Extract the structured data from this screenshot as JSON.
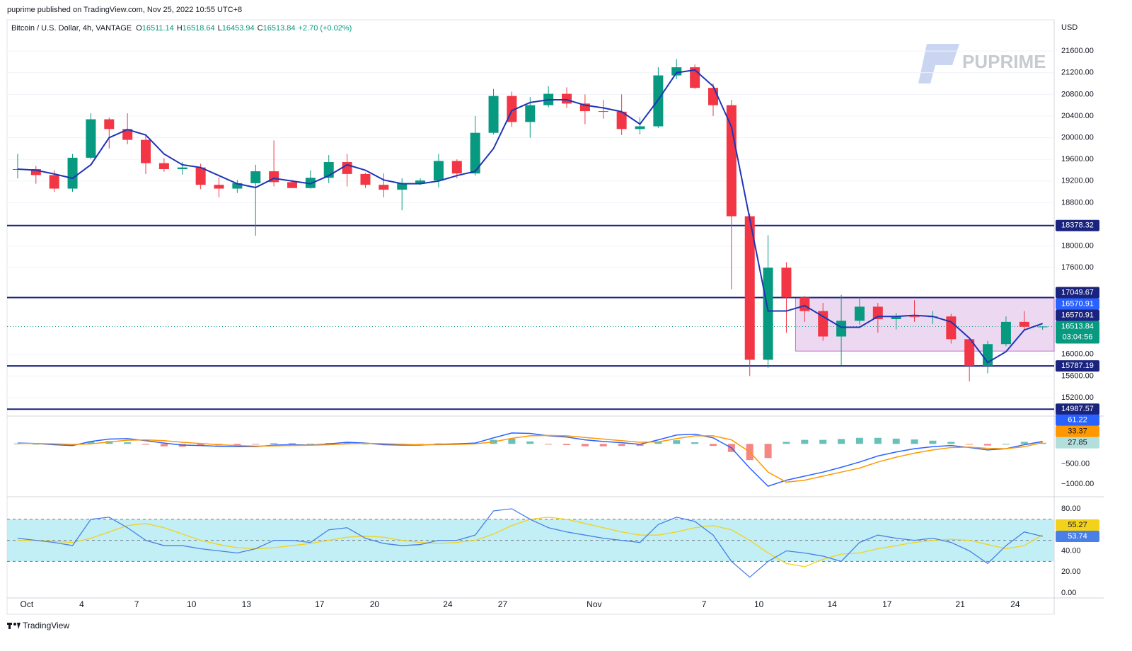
{
  "header": {
    "published": "puprime published on TradingView.com, Nov 25, 2022 10:55 UTC+8",
    "footer": "TradingView",
    "watermark": "PUPRIME"
  },
  "chart_data": [
    {
      "type": "candlestick",
      "title": "Bitcoin / U.S. Dollar, 4h, VANTAGE",
      "ohlc": [
        {
          "label": "O",
          "value": 16511.14
        },
        {
          "label": "H",
          "value": 16518.64
        },
        {
          "label": "L",
          "value": 16453.94
        },
        {
          "label": "C",
          "value": 16513.84
        }
      ],
      "change": "+2.70 (+0.02%)",
      "axis_label": "USD",
      "categories": [
        null,
        "Oct",
        null,
        null,
        "4",
        null,
        null,
        "7",
        null,
        null,
        "10",
        null,
        null,
        "13",
        null,
        null,
        null,
        "17",
        null,
        null,
        "20",
        null,
        null,
        null,
        "24",
        null,
        null,
        "27",
        null,
        null,
        null,
        null,
        "Nov",
        null,
        null,
        null,
        null,
        null,
        "7",
        null,
        null,
        "10",
        null,
        null,
        null,
        "14",
        null,
        null,
        "17",
        null,
        null,
        null,
        "21",
        null,
        null,
        "24",
        null
      ],
      "open": [
        19420,
        19420,
        19310,
        19060,
        19630,
        20340,
        20160,
        19960,
        19530,
        19420,
        19450,
        19130,
        19060,
        19160,
        19380,
        19180,
        19070,
        19260,
        19550,
        19330,
        19130,
        19040,
        19160,
        19210,
        19570,
        19340,
        20090,
        20770,
        20290,
        20600,
        20810,
        20630,
        20490,
        20480,
        20160,
        20210,
        21150,
        21300,
        20920,
        20600,
        18550,
        15900,
        17600,
        17050,
        16800,
        16330,
        16620,
        16880,
        16650,
        16700,
        16690,
        16700,
        16280,
        15790,
        16190,
        16600,
        16511.14
      ],
      "high": [
        19700,
        19480,
        19400,
        19700,
        20450,
        20370,
        20450,
        20050,
        19620,
        19550,
        19520,
        19270,
        19220,
        19500,
        19950,
        19220,
        19400,
        19680,
        19700,
        19350,
        19340,
        19250,
        19250,
        19700,
        19600,
        20400,
        20900,
        20850,
        20750,
        20950,
        20930,
        20800,
        20700,
        20800,
        20380,
        21300,
        21450,
        21350,
        21000,
        20700,
        18600,
        18200,
        17700,
        17080,
        16950,
        17100,
        17050,
        16950,
        16760,
        17000,
        16800,
        16750,
        16300,
        16250,
        16700,
        16800,
        16518.64
      ],
      "low": [
        19250,
        19150,
        19000,
        19000,
        19600,
        19800,
        19880,
        19330,
        19370,
        19320,
        19050,
        18900,
        18980,
        18190,
        19100,
        19080,
        19060,
        19160,
        19100,
        19070,
        18900,
        18660,
        19130,
        19080,
        19250,
        19300,
        20060,
        20200,
        20000,
        20560,
        20550,
        20250,
        20350,
        20050,
        20060,
        20180,
        21080,
        20900,
        20400,
        17200,
        15600,
        15750,
        16400,
        16600,
        16250,
        15800,
        16550,
        16400,
        16460,
        16600,
        16560,
        16200,
        15500,
        15650,
        16150,
        16450,
        16453.94
      ],
      "close": [
        19420,
        19310,
        19060,
        19630,
        20340,
        20160,
        19960,
        19530,
        19420,
        19450,
        19130,
        19060,
        19160,
        19380,
        19180,
        19070,
        19260,
        19550,
        19330,
        19130,
        19040,
        19160,
        19210,
        19570,
        19340,
        20090,
        20770,
        20290,
        20600,
        20810,
        20630,
        20490,
        20480,
        20160,
        20210,
        21150,
        21300,
        20920,
        20600,
        18550,
        15900,
        17600,
        17050,
        16800,
        16330,
        16620,
        16880,
        16650,
        16700,
        16690,
        16700,
        16280,
        15790,
        16190,
        16600,
        16510,
        16513.84
      ],
      "colors": {
        "up": "#089981",
        "down": "#f23645"
      },
      "ma": {
        "color": "#1e35b5",
        "values": [
          19420,
          19400,
          19330,
          19250,
          19500,
          20000,
          20150,
          20050,
          19700,
          19500,
          19450,
          19300,
          19150,
          19080,
          19250,
          19200,
          19150,
          19300,
          19500,
          19400,
          19220,
          19150,
          19150,
          19200,
          19300,
          19380,
          19800,
          20500,
          20650,
          20700,
          20700,
          20600,
          20550,
          20480,
          20250,
          20700,
          21200,
          21250,
          20950,
          20200,
          18500,
          16800,
          16800,
          16900,
          16700,
          16500,
          16500,
          16700,
          16700,
          16720,
          16700,
          16600,
          16300,
          15850,
          16050,
          16450,
          16570
        ]
      },
      "levels": [
        {
          "value": 18378.32,
          "color": "#1a237e"
        },
        {
          "value": 17049.67,
          "color": "#1a237e"
        },
        {
          "value": 15787.19,
          "color": "#1a237e"
        },
        {
          "value": 14987.57,
          "color": "#1a237e"
        }
      ],
      "zone": {
        "top": 17049.67,
        "bottom": 16060,
        "color": "#9c27b0"
      },
      "price_labels": [
        {
          "value": 16570.91,
          "color": "#1a237e"
        },
        {
          "value": 16570.91,
          "color": "#2962ff"
        }
      ],
      "last_price": 16513.84,
      "last_color": "#089981",
      "countdown": "03:04:56",
      "ylim": [
        14900,
        22150
      ],
      "yticks": [
        {
          "value": 21600,
          "label": "21600.00"
        },
        {
          "value": 21200,
          "label": "21200.00"
        },
        {
          "value": 20800,
          "label": "20800.00"
        },
        {
          "value": 20400,
          "label": "20400.00"
        },
        {
          "value": 20000,
          "label": "20000.00"
        },
        {
          "value": 19600,
          "label": "19600.00"
        },
        {
          "value": 19200,
          "label": "19200.00"
        },
        {
          "value": 18800,
          "label": "18800.00"
        },
        {
          "value": 18000,
          "label": "18000.00"
        },
        {
          "value": 17600,
          "label": "17600.00"
        },
        {
          "value": 16000,
          "label": "16000.00"
        },
        {
          "value": 15600,
          "label": "15600.00"
        },
        {
          "value": 15200,
          "label": "15200.00"
        }
      ],
      "grid": true
    },
    {
      "type": "macd",
      "series": [
        {
          "color": "#2962ff",
          "values": [
            20,
            10,
            -20,
            -40,
            60,
            120,
            130,
            80,
            20,
            -30,
            -40,
            -60,
            -70,
            -70,
            -30,
            -20,
            -30,
            0,
            40,
            20,
            -20,
            -30,
            -30,
            -10,
            0,
            20,
            150,
            270,
            260,
            200,
            170,
            100,
            60,
            30,
            -10,
            100,
            220,
            240,
            150,
            -100,
            -600,
            -1050,
            -900,
            -800,
            -700,
            -580,
            -450,
            -300,
            -200,
            -120,
            -70,
            -40,
            -90,
            -150,
            -120,
            -20,
            61.22
          ]
        },
        {
          "color": "#ff9800",
          "values": [
            10,
            10,
            0,
            -15,
            0,
            50,
            90,
            100,
            80,
            40,
            10,
            -20,
            -40,
            -55,
            -50,
            -40,
            -35,
            -20,
            0,
            15,
            5,
            -10,
            -20,
            -20,
            -15,
            0,
            50,
            140,
            200,
            210,
            200,
            160,
            120,
            80,
            40,
            50,
            130,
            200,
            200,
            100,
            -200,
            -700,
            -950,
            -900,
            -800,
            -700,
            -600,
            -450,
            -330,
            -230,
            -150,
            -90,
            -80,
            -110,
            -120,
            -70,
            33.37
          ]
        }
      ],
      "histogram": {
        "up": "#26a69a",
        "down": "#ef5350",
        "label_color": "#b2dfdb",
        "values": [
          10,
          0,
          -20,
          -25,
          60,
          70,
          40,
          -20,
          -60,
          -70,
          -50,
          -40,
          -30,
          -15,
          20,
          20,
          5,
          20,
          40,
          5,
          -25,
          -20,
          -10,
          10,
          15,
          20,
          100,
          130,
          60,
          -10,
          -30,
          -60,
          -60,
          -50,
          -50,
          50,
          90,
          40,
          -50,
          -200,
          -400,
          -350,
          50,
          100,
          100,
          120,
          150,
          150,
          130,
          110,
          80,
          50,
          -10,
          -40,
          0,
          50,
          27.85
        ]
      },
      "ylim": [
        -1276,
        655
      ],
      "yticks": [
        {
          "value": -500,
          "label": "−500.00"
        },
        {
          "value": -1000,
          "label": "−1000.00"
        }
      ]
    },
    {
      "type": "rsi",
      "series": [
        {
          "color": "#4a7fe6",
          "values": [
            52,
            50,
            48,
            45,
            70,
            72,
            62,
            50,
            45,
            45,
            42,
            40,
            38,
            42,
            50,
            50,
            48,
            60,
            62,
            52,
            47,
            45,
            46,
            50,
            50,
            55,
            78,
            80,
            70,
            62,
            58,
            55,
            52,
            50,
            48,
            65,
            72,
            68,
            55,
            30,
            15,
            30,
            40,
            38,
            35,
            30,
            48,
            55,
            52,
            50,
            52,
            48,
            40,
            28,
            45,
            58,
            53.74
          ]
        },
        {
          "color": "#f2d21b",
          "values": [
            50,
            50,
            49,
            48,
            52,
            58,
            64,
            66,
            62,
            56,
            50,
            46,
            43,
            42,
            43,
            45,
            47,
            50,
            53,
            54,
            53,
            50,
            48,
            47,
            48,
            50,
            56,
            64,
            70,
            72,
            70,
            66,
            62,
            58,
            55,
            55,
            58,
            62,
            64,
            60,
            50,
            38,
            28,
            25,
            32,
            37,
            38,
            42,
            45,
            48,
            50,
            51,
            50,
            46,
            42,
            45,
            55.27
          ]
        }
      ],
      "band": [
        30,
        70
      ],
      "midline": 50,
      "band_color": "#b2ebf2",
      "ylim": [
        -4.7,
        89.4
      ],
      "yticks": [
        {
          "value": 80,
          "label": "80.00"
        },
        {
          "value": 40,
          "label": "40.00"
        },
        {
          "value": 20,
          "label": "20.00"
        },
        {
          "value": 0,
          "label": "0.00"
        }
      ]
    }
  ]
}
